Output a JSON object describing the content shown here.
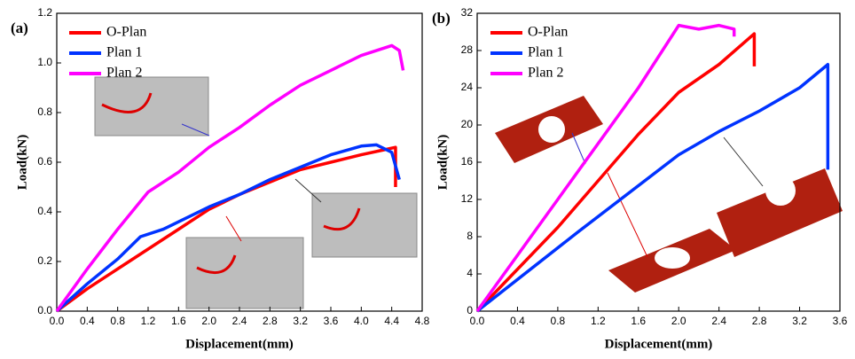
{
  "chart_data": [
    {
      "type": "line",
      "panel_label": "(a)",
      "x_label": "Displacement(mm)",
      "y_label": "Load(kN)",
      "xlim": [
        0,
        4.8
      ],
      "ylim": [
        0,
        1.2
      ],
      "xticks": [
        {
          "value": 0,
          "label": "0.0"
        },
        0.4,
        0.8,
        1.2,
        1.6,
        {
          "value": 2,
          "label": "2.0"
        },
        2.4,
        2.8,
        3.2,
        3.6,
        {
          "value": 4,
          "label": "4.0"
        },
        4.4,
        4.8
      ],
      "yticks": [
        {
          "value": 0,
          "label": "0.0"
        },
        0.2,
        0.4,
        0.6,
        0.8,
        {
          "value": 1,
          "label": "1.0"
        },
        1.2
      ],
      "series": [
        {
          "name": "O-Plan",
          "color": "#ff0000",
          "x": [
            0,
            0.4,
            0.8,
            1.2,
            1.6,
            2.0,
            2.4,
            2.8,
            3.2,
            3.6,
            4.0,
            4.3,
            4.45,
            4.45
          ],
          "values": [
            0,
            0.09,
            0.17,
            0.25,
            0.33,
            0.41,
            0.47,
            0.52,
            0.57,
            0.6,
            0.63,
            0.65,
            0.66,
            0.5
          ]
        },
        {
          "name": "Plan 1",
          "color": "#0033ff",
          "x": [
            0,
            0.4,
            0.8,
            1.1,
            1.4,
            1.6,
            2.0,
            2.4,
            2.8,
            3.2,
            3.6,
            4.0,
            4.2,
            4.4,
            4.5
          ],
          "values": [
            0,
            0.11,
            0.21,
            0.3,
            0.33,
            0.36,
            0.42,
            0.47,
            0.53,
            0.58,
            0.63,
            0.665,
            0.67,
            0.64,
            0.53
          ]
        },
        {
          "name": "Plan 2",
          "color": "#ff00ff",
          "x": [
            0,
            0.4,
            0.8,
            1.2,
            1.6,
            2.0,
            2.4,
            2.8,
            3.2,
            3.6,
            4.0,
            4.4,
            4.5,
            4.55
          ],
          "values": [
            0,
            0.17,
            0.33,
            0.48,
            0.56,
            0.66,
            0.74,
            0.83,
            0.91,
            0.97,
            1.03,
            1.07,
            1.05,
            0.97
          ]
        }
      ]
    },
    {
      "type": "line",
      "panel_label": "(b)",
      "x_label": "Displacement(mm)",
      "y_label": "Load(kN)",
      "xlim": [
        0,
        3.6
      ],
      "ylim": [
        0,
        32
      ],
      "xticks": [
        {
          "value": 0,
          "label": "0.0"
        },
        0.4,
        0.8,
        1.2,
        1.6,
        {
          "value": 2,
          "label": "2.0"
        },
        2.4,
        2.8,
        3.2,
        3.6
      ],
      "yticks": [
        0,
        4,
        8,
        12,
        16,
        20,
        24,
        28,
        32
      ],
      "series": [
        {
          "name": "O-Plan",
          "color": "#ff0000",
          "x": [
            0,
            0.4,
            0.8,
            1.2,
            1.6,
            2.0,
            2.4,
            2.75,
            2.75
          ],
          "values": [
            0,
            4.5,
            9,
            14,
            19,
            23.5,
            26.5,
            29.8,
            26.3
          ]
        },
        {
          "name": "Plan 1",
          "color": "#0033ff",
          "x": [
            0,
            1.0,
            2.0,
            2.4,
            2.8,
            3.2,
            3.48,
            3.48
          ],
          "values": [
            0,
            8.5,
            16.8,
            19.3,
            21.5,
            24,
            26.5,
            15.2
          ]
        },
        {
          "name": "Plan 2",
          "color": "#ff00ff",
          "x": [
            0,
            0.8,
            1.6,
            2.0,
            2.2,
            2.4,
            2.55,
            2.55
          ],
          "values": [
            0,
            12,
            24,
            30.7,
            30.3,
            30.7,
            30.3,
            29.5
          ]
        }
      ]
    }
  ]
}
